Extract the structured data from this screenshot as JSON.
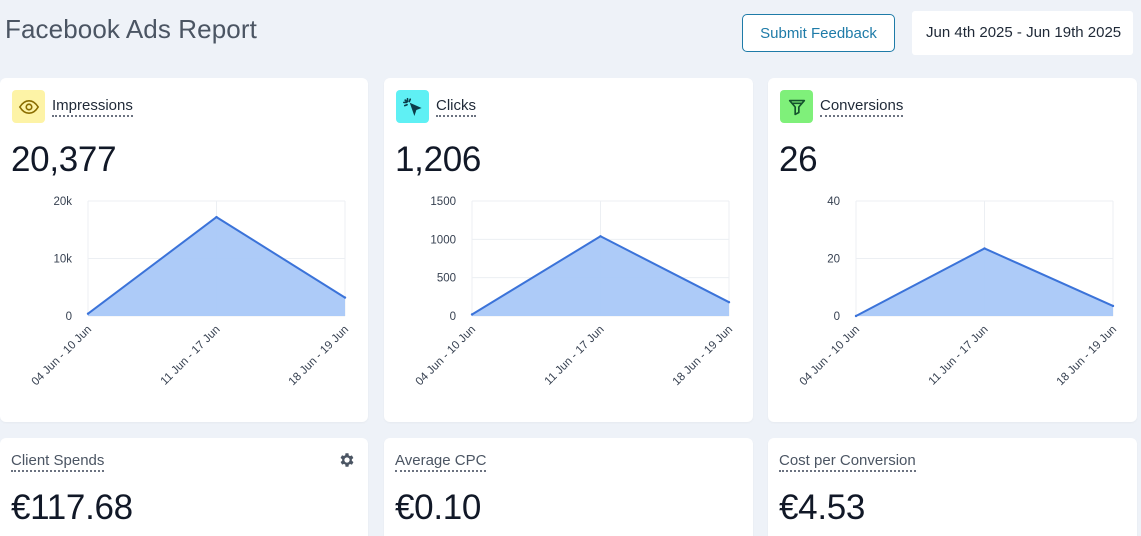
{
  "header": {
    "title": "Facebook Ads Report",
    "feedback_label": "Submit Feedback",
    "date_range": "Jun 4th 2025 - Jun 19th 2025"
  },
  "colors": {
    "impressions_icon_bg": "#fdf3a6",
    "clicks_icon_bg": "#5ff0f4",
    "conversions_icon_bg": "#7ff07a",
    "line": "#3b73d9",
    "area": "#a9c8f8"
  },
  "metrics": [
    {
      "label": "Impressions",
      "icon": "eye-icon",
      "value": "20,377",
      "chart_data": {
        "type": "area",
        "categories": [
          "04 Jun - 10 Jun",
          "11 Jun - 17 Jun",
          "18 Jun - 19 Jun"
        ],
        "values": [
          400,
          17200,
          3200
        ],
        "ylim": [
          0,
          20000
        ],
        "yticks": [
          "0",
          "10k",
          "20k"
        ],
        "ytick_values": [
          0,
          10000,
          20000
        ],
        "grid": true
      }
    },
    {
      "label": "Clicks",
      "icon": "cursor-click-icon",
      "value": "1,206",
      "chart_data": {
        "type": "area",
        "categories": [
          "04 Jun - 10 Jun",
          "11 Jun - 17 Jun",
          "18 Jun - 19 Jun"
        ],
        "values": [
          20,
          1040,
          180
        ],
        "ylim": [
          0,
          1500
        ],
        "yticks": [
          "0",
          "500",
          "1000",
          "1500"
        ],
        "ytick_values": [
          0,
          500,
          1000,
          1500
        ],
        "grid": true
      }
    },
    {
      "label": "Conversions",
      "icon": "funnel-icon",
      "value": "26",
      "chart_data": {
        "type": "area",
        "categories": [
          "04 Jun - 10 Jun",
          "11 Jun - 17 Jun",
          "18 Jun - 19 Jun"
        ],
        "values": [
          0,
          23.5,
          3.5
        ],
        "ylim": [
          0,
          40
        ],
        "yticks": [
          "0",
          "20",
          "40"
        ],
        "ytick_values": [
          0,
          20,
          40
        ],
        "grid": true
      }
    }
  ],
  "summary": [
    {
      "label": "Client Spends",
      "value": "€117.68",
      "has_settings": true,
      "icon": "gear-icon"
    },
    {
      "label": "Average CPC",
      "value": "€0.10"
    },
    {
      "label": "Cost per Conversion",
      "value": "€4.53"
    }
  ]
}
